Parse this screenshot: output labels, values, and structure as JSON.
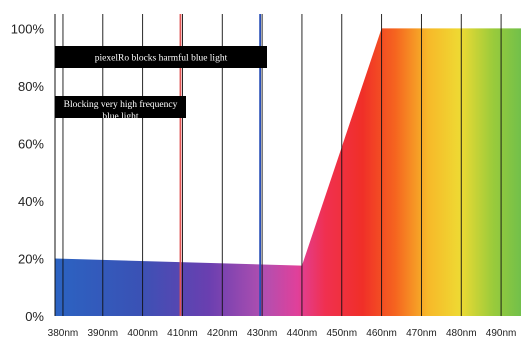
{
  "chart_data": {
    "type": "area",
    "title": "",
    "xlabel": "",
    "ylabel": "",
    "x_categories": [
      "380nm",
      "390nm",
      "400nm",
      "410nm",
      "420nm",
      "430nm",
      "440nm",
      "450nm",
      "460nm",
      "470nm",
      "480nm",
      "490nm"
    ],
    "y_ticks": [
      "0%",
      "20%",
      "40%",
      "60%",
      "80%",
      "100%"
    ],
    "xlim": [
      378,
      495
    ],
    "ylim": [
      0,
      105
    ],
    "grid": "vertical",
    "series": [
      {
        "x": [
          378,
          440,
          460,
          495
        ],
        "y": [
          20,
          17.5,
          100,
          100
        ]
      }
    ],
    "fill": "visible-spectrum-gradient",
    "markers": [
      {
        "x": 409.5,
        "color": "#e05555"
      },
      {
        "x": 429.5,
        "color": "#2a4fb8"
      }
    ],
    "annotations": [
      {
        "text": "piexelRo blocks harmful blue light"
      },
      {
        "text": "Blocking very high frequency blue light"
      }
    ]
  }
}
